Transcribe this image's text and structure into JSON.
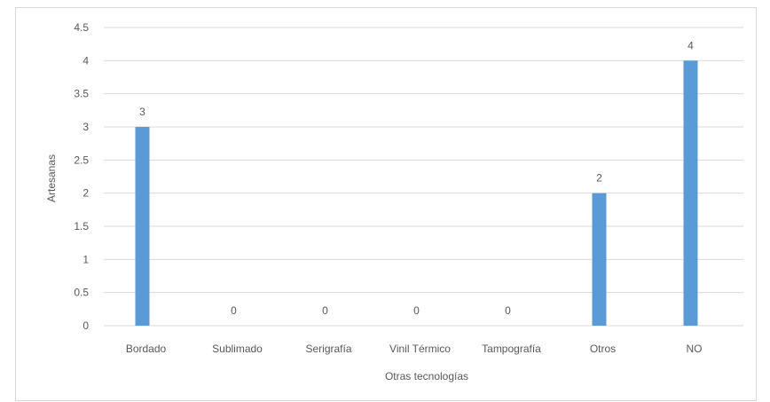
{
  "chart_data": {
    "type": "bar",
    "categories": [
      "Bordado",
      "Sublimado",
      "Serigrafía",
      "Vinil Térmico",
      "Tampografía",
      "Otros",
      "NO"
    ],
    "values": [
      3,
      0,
      0,
      0,
      0,
      2,
      4
    ],
    "data_labels": [
      "3",
      "0",
      "0",
      "0",
      "0",
      "2",
      "4"
    ],
    "xlabel": "Otras tecnologías",
    "ylabel": "Artesanas",
    "ylim": [
      0,
      4.5
    ],
    "yticks": [
      "0",
      "0.5",
      "1",
      "1.5",
      "2",
      "2.5",
      "3",
      "3.5",
      "4",
      "4.5"
    ],
    "ytick_values": [
      0,
      0.5,
      1,
      1.5,
      2,
      2.5,
      3,
      3.5,
      4,
      4.5
    ],
    "grid": true,
    "legend": "none",
    "colors": {
      "bar": "#5b9bd5",
      "grid": "#d9d9d9",
      "text": "#595959",
      "border": "#d9d9d9"
    }
  }
}
